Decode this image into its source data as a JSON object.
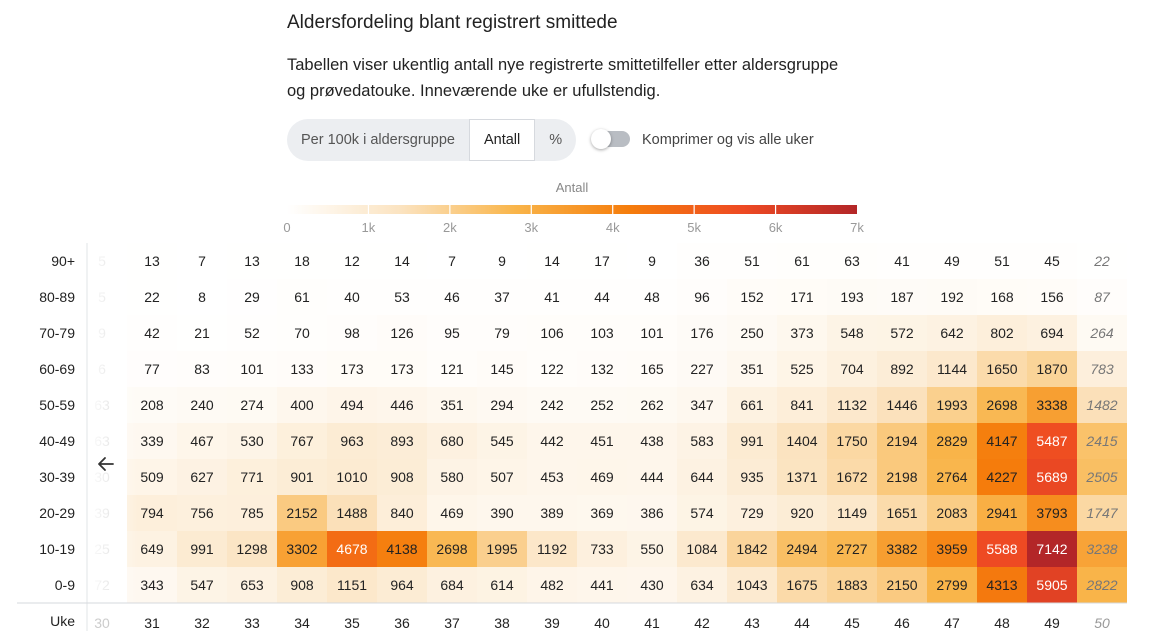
{
  "header": {
    "title": "Aldersfordeling blant registrert smittede",
    "description": "Tabellen viser ukentlig antall nye registrerte smittetilfeller etter aldersgruppe og prøvedatouke. Inneværende uke er ufullstendig."
  },
  "controls": {
    "tabs": [
      {
        "label": "Per 100k i aldersgruppe",
        "active": false
      },
      {
        "label": "Antall",
        "active": true
      },
      {
        "label": "%",
        "active": false
      }
    ],
    "toggle_label": "Komprimer og vis alle uker",
    "toggle_on": false
  },
  "colors": {
    "scale": [
      "#ffffff",
      "#fbe3c0",
      "#f9b54a",
      "#f57d0c",
      "#ee4a23",
      "#b32628"
    ],
    "text_dark": "#222222",
    "text_light": "#ffffff",
    "axis_text": "#999999"
  },
  "icons": {
    "back": "arrow-left-icon"
  },
  "chart_data": {
    "type": "heatmap",
    "legend_title": "Antall",
    "legend_ticks": [
      "0",
      "1k",
      "2k",
      "3k",
      "4k",
      "5k",
      "6k",
      "7k"
    ],
    "legend_max": 7000,
    "x_axis_label": "Uke",
    "y_categories": [
      "90+",
      "80-89",
      "70-79",
      "60-69",
      "50-59",
      "40-49",
      "30-39",
      "20-29",
      "10-19",
      "0-9"
    ],
    "partial_column": {
      "x": "30",
      "visible_digits": [
        "5",
        "5",
        "9",
        "6",
        "63",
        "63",
        "30",
        "39",
        "25",
        "72"
      ]
    },
    "x_categories": [
      "31",
      "32",
      "33",
      "34",
      "35",
      "36",
      "37",
      "38",
      "39",
      "40",
      "41",
      "42",
      "43",
      "44",
      "45",
      "46",
      "47",
      "48",
      "49",
      "50"
    ],
    "incomplete_week": "50",
    "values": [
      [
        13,
        7,
        13,
        18,
        12,
        14,
        7,
        9,
        14,
        17,
        9,
        36,
        51,
        61,
        63,
        41,
        49,
        51,
        45,
        22
      ],
      [
        22,
        8,
        29,
        61,
        40,
        53,
        46,
        37,
        41,
        44,
        48,
        96,
        152,
        171,
        193,
        187,
        192,
        168,
        156,
        87
      ],
      [
        42,
        21,
        52,
        70,
        98,
        126,
        95,
        79,
        106,
        103,
        101,
        176,
        250,
        373,
        548,
        572,
        642,
        802,
        694,
        264
      ],
      [
        77,
        83,
        101,
        133,
        173,
        173,
        121,
        145,
        122,
        132,
        165,
        227,
        351,
        525,
        704,
        892,
        1144,
        1650,
        1870,
        783
      ],
      [
        208,
        240,
        274,
        400,
        494,
        446,
        351,
        294,
        242,
        252,
        262,
        347,
        661,
        841,
        1132,
        1446,
        1993,
        2698,
        3338,
        1482
      ],
      [
        339,
        467,
        530,
        767,
        963,
        893,
        680,
        545,
        442,
        451,
        438,
        583,
        991,
        1404,
        1750,
        2194,
        2829,
        4147,
        5487,
        2415
      ],
      [
        509,
        627,
        771,
        901,
        1010,
        908,
        580,
        507,
        453,
        469,
        444,
        644,
        935,
        1371,
        1672,
        2198,
        2764,
        4227,
        5689,
        2505
      ],
      [
        794,
        756,
        785,
        2152,
        1488,
        840,
        469,
        390,
        389,
        369,
        386,
        574,
        729,
        920,
        1149,
        1651,
        2083,
        2941,
        3793,
        1747
      ],
      [
        649,
        991,
        1298,
        3302,
        4678,
        4138,
        2698,
        1995,
        1192,
        733,
        550,
        1084,
        1842,
        2494,
        2727,
        3382,
        3959,
        5588,
        7142,
        3238
      ],
      [
        343,
        547,
        653,
        908,
        1151,
        964,
        684,
        614,
        482,
        441,
        430,
        634,
        1043,
        1675,
        1883,
        2150,
        2799,
        4313,
        5905,
        2822
      ]
    ]
  }
}
